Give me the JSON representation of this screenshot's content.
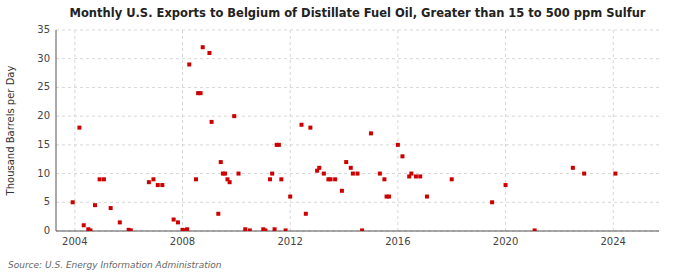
{
  "chart_data": {
    "type": "scatter",
    "title": "Monthly U.S. Exports to Belgium of Distillate Fuel Oil, Greater than 15 to 500 ppm Sulfur",
    "ylabel": "Thousand Barrels per Day",
    "source": "Source: U.S. Energy Information Administration",
    "color": "#cc0000",
    "marker": "square",
    "grid": true,
    "xlim": [
      2003.3,
      2025.7
    ],
    "xticks": [
      2004,
      2008,
      2012,
      2016,
      2020,
      2024
    ],
    "ylim": [
      0,
      35
    ],
    "yticks": [
      0,
      5,
      10,
      15,
      20,
      25,
      30,
      35
    ],
    "x": [
      2003.92,
      2004.17,
      2004.33,
      2004.5,
      2004.58,
      2004.75,
      2004.92,
      2005.08,
      2005.33,
      2005.67,
      2006.0,
      2006.08,
      2006.75,
      2006.92,
      2007.08,
      2007.25,
      2007.67,
      2007.83,
      2008.0,
      2008.08,
      2008.17,
      2008.25,
      2008.5,
      2008.58,
      2008.67,
      2008.75,
      2009.0,
      2009.08,
      2009.33,
      2009.42,
      2009.5,
      2009.58,
      2009.67,
      2009.75,
      2009.92,
      2010.08,
      2010.33,
      2010.5,
      2011.0,
      2011.08,
      2011.25,
      2011.33,
      2011.42,
      2011.5,
      2011.58,
      2011.67,
      2011.83,
      2012.0,
      2012.42,
      2012.58,
      2012.75,
      2013.0,
      2013.08,
      2013.25,
      2013.42,
      2013.5,
      2013.67,
      2013.92,
      2014.08,
      2014.25,
      2014.33,
      2014.5,
      2014.67,
      2015.0,
      2015.33,
      2015.5,
      2015.58,
      2015.67,
      2016.0,
      2016.17,
      2016.42,
      2016.5,
      2016.67,
      2016.83,
      2017.08,
      2018.0,
      2019.5,
      2020.0,
      2021.08,
      2022.5,
      2022.92,
      2024.08
    ],
    "values": [
      5.0,
      18.0,
      1.0,
      0.3,
      0.1,
      4.5,
      9.0,
      9.0,
      4.0,
      1.5,
      0.2,
      0.1,
      8.5,
      9.0,
      8.0,
      8.0,
      2.0,
      1.5,
      0.2,
      0.1,
      0.3,
      29.0,
      9.0,
      24.0,
      24.0,
      32.0,
      31.0,
      19.0,
      3.0,
      12.0,
      10.0,
      10.0,
      9.0,
      8.5,
      20.0,
      10.0,
      0.3,
      0.1,
      0.3,
      0.1,
      9.0,
      10.0,
      0.3,
      15.0,
      15.0,
      9.0,
      0.1,
      6.0,
      18.5,
      3.0,
      18.0,
      10.5,
      11.0,
      10.0,
      9.0,
      9.0,
      9.0,
      7.0,
      12.0,
      11.0,
      10.0,
      10.0,
      0.1,
      17.0,
      10.0,
      9.0,
      6.0,
      6.0,
      15.0,
      13.0,
      9.5,
      10.0,
      9.5,
      9.5,
      6.0,
      9.0,
      5.0,
      8.0,
      0.1,
      11.0,
      10.0,
      10.0
    ]
  }
}
